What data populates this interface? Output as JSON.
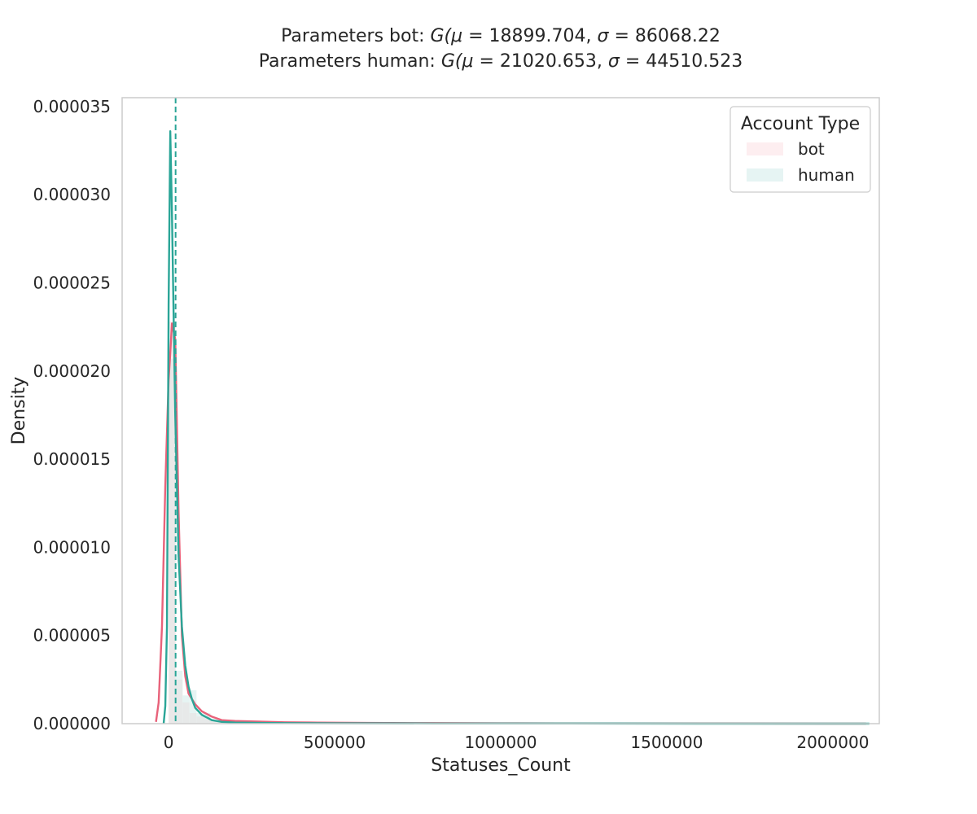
{
  "chart_data": {
    "type": "line",
    "title_lines": [
      "Parameters bot: $G(\\mu=$ 18899.704, $\\sigma=$ 86068.22",
      "Parameters human: $G(\\mu=$ 21020.653, $\\sigma=$ 44510.523"
    ],
    "title_display": [
      [
        {
          "t": "Parameters bot: "
        },
        {
          "t": "G(μ",
          "i": true
        },
        {
          "t": " =  18899.704, "
        },
        {
          "t": "σ",
          "i": true
        },
        {
          "t": " =  86068.22"
        }
      ],
      [
        {
          "t": "Parameters human: "
        },
        {
          "t": "G(μ",
          "i": true
        },
        {
          "t": " =  21020.653, "
        },
        {
          "t": "σ",
          "i": true
        },
        {
          "t": " =  44510.523"
        }
      ]
    ],
    "xlabel": "Statuses_Count",
    "ylabel": "Density",
    "xlim": [
      -140000,
      2140000
    ],
    "ylim": [
      0,
      3.55e-05
    ],
    "xticks": [
      0,
      500000,
      1000000,
      1500000,
      2000000
    ],
    "xtick_labels": [
      "0",
      "500000",
      "1000000",
      "1500000",
      "2000000"
    ],
    "yticks": [
      0,
      5e-06,
      1e-05,
      1.5e-05,
      2e-05,
      2.5e-05,
      3e-05,
      3.5e-05
    ],
    "ytick_labels": [
      "0.000000",
      "0.000005",
      "0.000010",
      "0.000015",
      "0.000020",
      "0.000025",
      "0.000030",
      "0.000035"
    ],
    "grid": false,
    "legend": {
      "title": "Account Type",
      "position": "top-right",
      "entries": [
        {
          "label": "bot",
          "color": "#fdeef0"
        },
        {
          "label": "human",
          "color": "#e6f4f3"
        }
      ]
    },
    "histogram": {
      "bins": [
        {
          "x0": 0,
          "x1": 21000,
          "bot": 2.28e-05,
          "human": 2.07e-05
        },
        {
          "x0": 21000,
          "x1": 42000,
          "bot": 2.5e-06,
          "human": 3e-06
        },
        {
          "x0": 42000,
          "x1": 63000,
          "bot": 1.2e-06,
          "human": 1.6e-06
        },
        {
          "x0": 63000,
          "x1": 84000,
          "bot": 6e-07,
          "human": 1.9e-06
        },
        {
          "x0": 84000,
          "x1": 126000,
          "bot": 4e-07,
          "human": 6e-07
        },
        {
          "x0": 126000,
          "x1": 210000,
          "bot": 2e-07,
          "human": 2e-07
        }
      ]
    },
    "series": [
      {
        "name": "bot",
        "color": "#e8627a",
        "x": [
          -38000,
          -30000,
          -20000,
          -10000,
          0,
          5000,
          10000,
          20000,
          30000,
          40000,
          50000,
          60000,
          80000,
          100000,
          130000,
          160000,
          200000,
          270000,
          350000,
          450000,
          600000,
          800000,
          1000000,
          1300000,
          1600000,
          2000000,
          2100000
        ],
        "y": [
          1e-07,
          1.2e-06,
          5.5e-06,
          1.35e-05,
          1.95e-05,
          2.1e-05,
          2.27e-05,
          2.18e-05,
          1.2e-05,
          5e-06,
          2.7e-06,
          1.7e-06,
          1.1e-06,
          7e-07,
          4e-07,
          2e-07,
          1.5e-07,
          1.2e-07,
          8e-08,
          6e-08,
          4e-08,
          3e-08,
          2e-08,
          1e-08,
          1e-08,
          0.0,
          0.0
        ]
      },
      {
        "name": "human",
        "color": "#2aa597",
        "x": [
          -15000,
          -10000,
          -5000,
          0,
          5000,
          10000,
          15000,
          20000,
          30000,
          40000,
          50000,
          60000,
          70000,
          80000,
          100000,
          130000,
          160000,
          200000,
          270000,
          350000,
          500000,
          800000,
          1200000,
          1600000,
          2000000,
          2110000
        ],
        "y": [
          0.0,
          1e-06,
          5.5e-06,
          2.38e-05,
          3.36e-05,
          2.9e-05,
          2.32e-05,
          1.75e-05,
          9.5e-06,
          5.5e-06,
          3.3e-06,
          2.1e-06,
          1.4e-06,
          9e-07,
          5e-07,
          2e-07,
          1e-07,
          6e-08,
          4e-08,
          3e-08,
          2e-08,
          1e-08,
          1e-08,
          0.0,
          0.0,
          0.0
        ]
      }
    ],
    "vlines": [
      {
        "x": 21020.653,
        "color": "#2aa597",
        "style": "dashed"
      }
    ]
  }
}
